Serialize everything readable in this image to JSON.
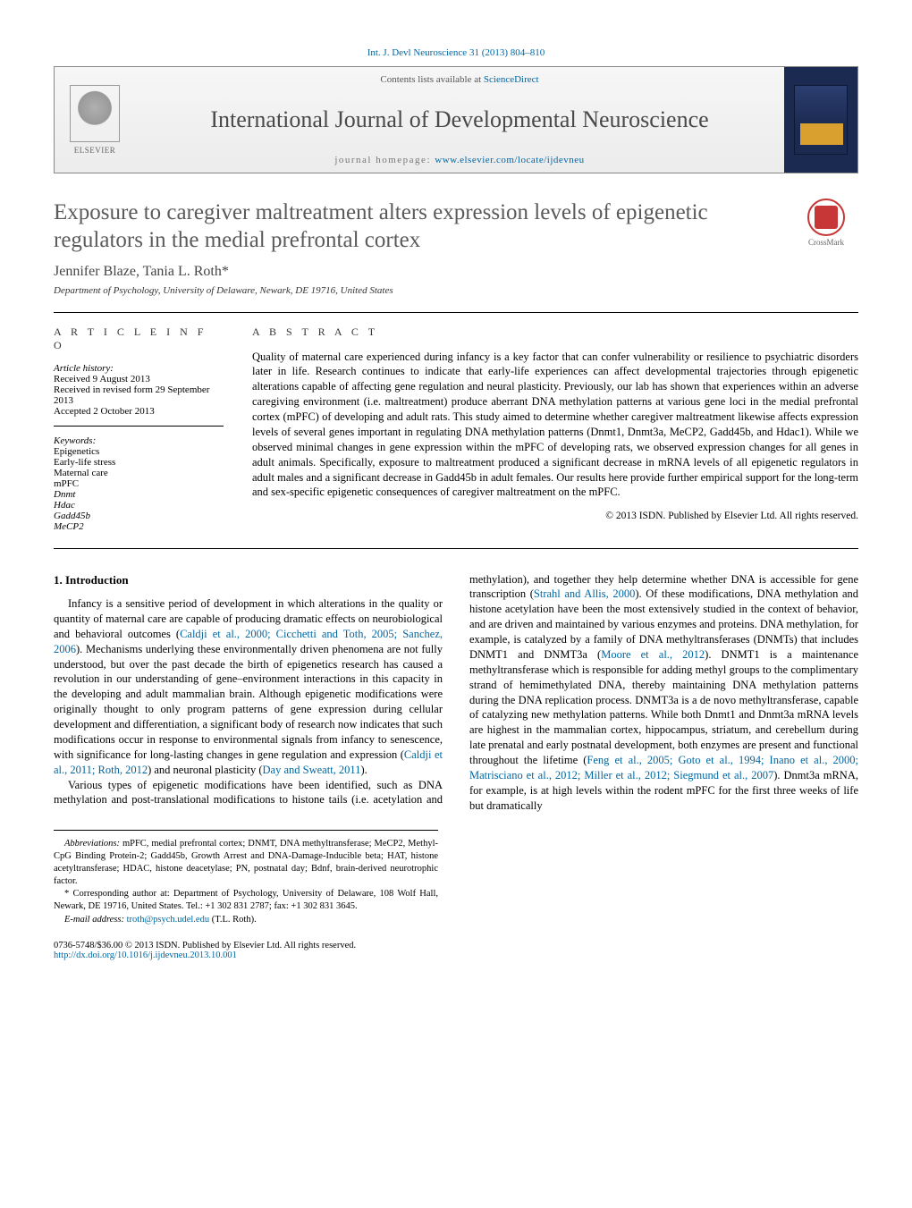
{
  "top_link": {
    "citation": "Int. J. Devl Neuroscience 31 (2013) 804–810"
  },
  "banner": {
    "contents_prefix": "Contents lists available at ",
    "contents_link": "ScienceDirect",
    "journal_name": "International Journal of Developmental Neuroscience",
    "homepage_prefix": "journal homepage: ",
    "homepage_url": "www.elsevier.com/locate/ijdevneu",
    "publisher_label": "ELSEVIER",
    "cover_colors": {
      "bg": "#1a2a50",
      "band": "#d9a030"
    }
  },
  "crossmark": {
    "label": "CrossMark"
  },
  "article": {
    "title": "Exposure to caregiver maltreatment alters expression levels of epigenetic regulators in the medial prefrontal cortex",
    "authors": "Jennifer Blaze, Tania L. Roth*",
    "affiliation": "Department of Psychology, University of Delaware, Newark, DE 19716, United States"
  },
  "info": {
    "heading": "a r t i c l e   i n f o",
    "history_label": "Article history:",
    "received": "Received 9 August 2013",
    "revised": "Received in revised form 29 September 2013",
    "accepted": "Accepted 2 October 2013",
    "keywords_label": "Keywords:",
    "keywords": [
      "Epigenetics",
      "Early-life stress",
      "Maternal care",
      "mPFC",
      "Dnmt",
      "Hdac",
      "Gadd45b",
      "MeCP2"
    ]
  },
  "abstract": {
    "heading": "a b s t r a c t",
    "text": "Quality of maternal care experienced during infancy is a key factor that can confer vulnerability or resilience to psychiatric disorders later in life. Research continues to indicate that early-life experiences can affect developmental trajectories through epigenetic alterations capable of affecting gene regulation and neural plasticity. Previously, our lab has shown that experiences within an adverse caregiving environment (i.e. maltreatment) produce aberrant DNA methylation patterns at various gene loci in the medial prefrontal cortex (mPFC) of developing and adult rats. This study aimed to determine whether caregiver maltreatment likewise affects expression levels of several genes important in regulating DNA methylation patterns (Dnmt1, Dnmt3a, MeCP2, Gadd45b, and Hdac1). While we observed minimal changes in gene expression within the mPFC of developing rats, we observed expression changes for all genes in adult animals. Specifically, exposure to maltreatment produced a significant decrease in mRNA levels of all epigenetic regulators in adult males and a significant decrease in Gadd45b in adult females. Our results here provide further empirical support for the long-term and sex-specific epigenetic consequences of caregiver maltreatment on the mPFC.",
    "copyright": "© 2013 ISDN. Published by Elsevier Ltd. All rights reserved."
  },
  "body": {
    "section1_heading": "1. Introduction",
    "p1_a": "Infancy is a sensitive period of development in which alterations in the quality or quantity of maternal care are capable of producing dramatic effects on neurobiological and behavioral outcomes (",
    "p1_link1": "Caldji et al., 2000; Cicchetti and Toth, 2005; Sanchez, 2006",
    "p1_b": "). Mechanisms underlying these environmentally driven phenomena are not fully understood, but over the past decade the birth of epigenetics research has caused a revolution in our understanding of gene–environment interactions in this capacity in the developing and adult mammalian brain. Although epigenetic modifications were originally thought to only program patterns of gene expression during cellular development and differentiation, a significant body of research now indicates that such modifications occur in response to environmental signals from infancy to senescence, with ",
    "p1_c": "significance for long-lasting changes in gene regulation and expression (",
    "p1_link2": "Caldji et al., 2011; Roth, 2012",
    "p1_d": ") and neuronal plasticity (",
    "p1_link3": "Day and Sweatt, 2011",
    "p1_e": ").",
    "p2_a": "Various types of epigenetic modifications have been identified, such as DNA methylation and post-translational modifications to histone tails (i.e. acetylation and methylation), and together they help determine whether DNA is accessible for gene transcription (",
    "p2_link1": "Strahl and Allis, 2000",
    "p2_b": "). Of these modifications, DNA methylation and histone acetylation have been the most extensively studied in the context of behavior, and are driven and maintained by various enzymes and proteins. DNA methylation, for example, is catalyzed by a family of DNA methyltransferases (DNMTs) that includes DNMT1 and DNMT3a (",
    "p2_link2": "Moore et al., 2012",
    "p2_c": "). DNMT1 is a maintenance methyltransferase which is responsible for adding methyl groups to the complimentary strand of hemimethylated DNA, thereby maintaining DNA methylation patterns during the DNA replication process. DNMT3a is a de novo methyltransferase, capable of catalyzing new methylation patterns. While both Dnmt1 and Dnmt3a mRNA levels are highest in the mammalian cortex, hippocampus, striatum, and cerebellum during late prenatal and early postnatal development, both enzymes are present and functional throughout the lifetime (",
    "p2_link3": "Feng et al., 2005; Goto et al., 1994; Inano et al., 2000; Matrisciano et al., 2012; Miller et al., 2012; Siegmund et al., 2007",
    "p2_d": "). Dnmt3a mRNA, for example, is at high levels within the rodent mPFC for the first three weeks of life but dramatically"
  },
  "footnotes": {
    "abbrev_label": "Abbreviations:",
    "abbrev": " mPFC, medial prefrontal cortex; DNMT, DNA methyltransferase; MeCP2, Methyl-CpG Binding Protein-2; Gadd45b, Growth Arrest and DNA-Damage-Inducible beta; HAT, histone acetyltransferase; HDAC, histone deacetylase; PN, postnatal day; Bdnf, brain-derived neurotrophic factor.",
    "corr_label": "* Corresponding author at: ",
    "corr": "Department of Psychology, University of Delaware, 108 Wolf Hall, Newark, DE 19716, United States. Tel.: +1 302 831 2787; fax: +1 302 831 3645.",
    "email_label": "E-mail address: ",
    "email": "troth@psych.udel.edu",
    "email_suffix": " (T.L. Roth)."
  },
  "footer": {
    "issn": "0736-5748/$36.00 © 2013 ISDN. Published by Elsevier Ltd. All rights reserved.",
    "doi": "http://dx.doi.org/10.1016/j.ijdevneu.2013.10.001"
  },
  "colors": {
    "link": "#0066a1",
    "heading": "#494949",
    "title": "#5a5a5a",
    "border": "#000000",
    "crossmark_red": "#c83737"
  }
}
